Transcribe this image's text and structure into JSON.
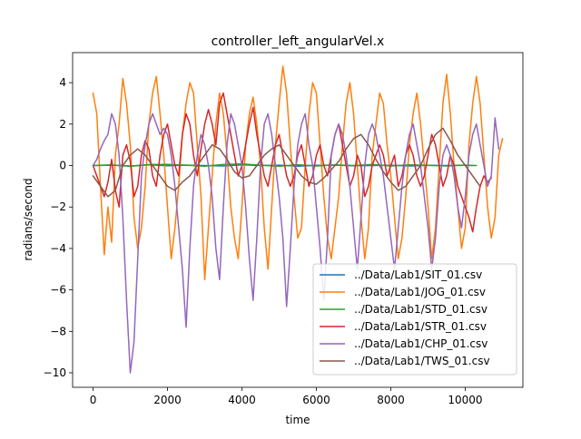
{
  "chart_data": {
    "type": "line",
    "title": "controller_left_angularVel.x",
    "xlabel": "time",
    "ylabel": "radians/second",
    "xlim": [
      -550,
      11550
    ],
    "ylim": [
      -10.7,
      5.45
    ],
    "x_ticks": [
      0,
      2000,
      4000,
      6000,
      8000,
      10000
    ],
    "y_ticks": [
      -10,
      -8,
      -6,
      -4,
      -2,
      0,
      2,
      4
    ],
    "grid": false,
    "legend_position": "lower right",
    "series": [
      {
        "name": "../Data/Lab1/SIT_01.csv",
        "color": "#1f77b4",
        "x": [
          0,
          500,
          1000,
          1500,
          2000,
          2500,
          3000,
          3500,
          4000,
          4500,
          5000,
          5500,
          6000,
          6500,
          7000,
          7500,
          8000,
          8500,
          9000,
          9500,
          10000,
          10200
        ],
        "y": [
          0.0,
          0.02,
          -0.02,
          0.03,
          -0.01,
          0.02,
          0.0,
          -0.02,
          0.03,
          0.0,
          0.02,
          -0.03,
          0.01,
          0.02,
          -0.01,
          0.0,
          0.02,
          -0.02,
          0.01,
          0.0,
          0.02,
          0.0
        ]
      },
      {
        "name": "../Data/Lab1/JOG_01.csv",
        "color": "#ff7f0e",
        "x": [
          0,
          100,
          200,
          300,
          400,
          500,
          600,
          700,
          800,
          900,
          1000,
          1100,
          1200,
          1300,
          1400,
          1500,
          1600,
          1700,
          1800,
          1900,
          2000,
          2100,
          2200,
          2300,
          2400,
          2500,
          2600,
          2700,
          2800,
          2900,
          3000,
          3100,
          3200,
          3300,
          3400,
          3500,
          3600,
          3700,
          3800,
          3900,
          4000,
          4100,
          4200,
          4300,
          4400,
          4500,
          4600,
          4700,
          4800,
          4900,
          5000,
          5100,
          5200,
          5300,
          5400,
          5500,
          5600,
          5700,
          5800,
          5900,
          6000,
          6100,
          6200,
          6300,
          6400,
          6500,
          6600,
          6700,
          6800,
          6900,
          7000,
          7100,
          7200,
          7300,
          7400,
          7500,
          7600,
          7700,
          7800,
          7900,
          8000,
          8100,
          8200,
          8300,
          8400,
          8500,
          8600,
          8700,
          8800,
          8900,
          9000,
          9100,
          9200,
          9300,
          9400,
          9500,
          9600,
          9700,
          9800,
          9900,
          10000,
          10100,
          10200,
          10300,
          10400,
          10500,
          10600,
          10700,
          10800,
          10900,
          11000
        ],
        "y": [
          3.5,
          2.5,
          -1.0,
          -4.3,
          -2.0,
          -3.7,
          0.5,
          2.0,
          4.2,
          3.0,
          1.0,
          -2.5,
          -4.0,
          -3.0,
          -1.0,
          2.0,
          3.5,
          4.3,
          2.5,
          0.5,
          -2.0,
          -4.5,
          -3.0,
          -1.0,
          1.5,
          3.0,
          4.0,
          3.5,
          1.0,
          -1.5,
          -5.5,
          -3.0,
          -0.5,
          2.0,
          3.5,
          2.5,
          0.5,
          -2.0,
          -3.5,
          -4.5,
          -2.0,
          1.0,
          2.5,
          3.3,
          2.0,
          0.0,
          -3.0,
          -5.0,
          -2.0,
          1.0,
          3.0,
          4.8,
          3.5,
          1.0,
          -1.5,
          -3.5,
          -3.0,
          0.0,
          2.5,
          4.0,
          3.5,
          1.0,
          -1.5,
          -3.5,
          -4.5,
          -3.0,
          -1.5,
          1.0,
          3.0,
          4.0,
          2.5,
          0.0,
          -2.5,
          -4.5,
          -3.0,
          0.5,
          2.0,
          3.5,
          3.0,
          1.0,
          -0.5,
          -2.5,
          -4.5,
          -3.5,
          -1.5,
          1.0,
          2.5,
          3.5,
          2.0,
          0.0,
          -2.0,
          -4.5,
          -3.0,
          0.0,
          3.0,
          4.4,
          2.5,
          0.0,
          -2.0,
          -4.0,
          -3.0,
          1.0,
          3.0,
          4.3,
          3.0,
          0.5,
          -2.0,
          -3.5,
          -2.5,
          0.5,
          1.3
        ]
      },
      {
        "name": "../Data/Lab1/STD_01.csv",
        "color": "#2ca02c",
        "x": [
          0,
          500,
          1000,
          1500,
          2000,
          2500,
          3000,
          3500,
          4000,
          4500,
          5000,
          5500,
          6000,
          6500,
          7000,
          7500,
          8000,
          8500,
          9000,
          9500,
          10000,
          10300
        ],
        "y": [
          0.0,
          0.03,
          -0.04,
          0.05,
          0.06,
          0.02,
          -0.03,
          0.05,
          0.08,
          0.02,
          -0.03,
          0.04,
          -0.02,
          0.03,
          0.0,
          0.05,
          -0.02,
          0.03,
          0.01,
          -0.02,
          0.02,
          0.0
        ]
      },
      {
        "name": "../Data/Lab1/STR_01.csv",
        "color": "#d62728",
        "x": [
          0,
          100,
          200,
          300,
          400,
          500,
          600,
          700,
          800,
          900,
          1000,
          1100,
          1200,
          1300,
          1400,
          1500,
          1600,
          1700,
          1800,
          1900,
          2000,
          2100,
          2200,
          2300,
          2400,
          2500,
          2600,
          2700,
          2800,
          2900,
          3000,
          3100,
          3200,
          3300,
          3400,
          3500,
          3600,
          3700,
          3800,
          3900,
          4000,
          4100,
          4200,
          4300,
          4400,
          4500,
          4600,
          4700,
          4800,
          4900,
          5000,
          5100,
          5200,
          5300,
          5400,
          5500,
          5600,
          5700,
          5800,
          5900,
          6000,
          6100,
          6200,
          6300,
          6400,
          6500,
          6600,
          6700,
          6800,
          6900,
          7000,
          7100,
          7200,
          7300,
          7400,
          7500,
          7600,
          7700,
          7800,
          7900,
          8000,
          8100,
          8200,
          8300,
          8400,
          8500,
          8600,
          8700,
          8800,
          8900,
          9000,
          9100,
          9200,
          9300,
          9400,
          9500,
          9600,
          9700,
          9800,
          9900,
          10000,
          10100,
          10200,
          10300,
          10400,
          10500,
          10600,
          10700
        ],
        "y": [
          0.0,
          -0.5,
          -1.0,
          -1.5,
          -0.8,
          0.3,
          -1.2,
          -2.0,
          0.5,
          1.0,
          0.2,
          -1.5,
          -1.0,
          0.5,
          1.2,
          0.8,
          -0.5,
          -1.0,
          0.5,
          1.5,
          2.0,
          1.0,
          0.0,
          -0.5,
          1.5,
          2.5,
          2.0,
          0.5,
          -0.5,
          0.8,
          2.0,
          2.7,
          2.0,
          1.0,
          3.0,
          3.5,
          2.5,
          1.5,
          0.5,
          -0.5,
          0.0,
          1.0,
          2.0,
          2.8,
          1.5,
          0.5,
          -0.5,
          -1.0,
          0.0,
          1.0,
          1.5,
          0.5,
          -0.5,
          -1.0,
          -0.5,
          0.5,
          1.0,
          0.0,
          -1.0,
          -0.5,
          0.5,
          1.0,
          0.0,
          -0.5,
          0.5,
          1.5,
          2.0,
          1.0,
          0.0,
          -1.0,
          -0.5,
          0.5,
          0.0,
          -1.5,
          -1.0,
          0.0,
          0.5,
          1.0,
          0.5,
          -0.5,
          0.0,
          0.5,
          -1.0,
          -0.5,
          0.5,
          1.0,
          0.5,
          -0.5,
          -1.0,
          -0.5,
          0.5,
          1.5,
          1.0,
          0.0,
          -1.0,
          -0.5,
          0.5,
          0.0,
          -1.0,
          -1.5,
          -2.0,
          -2.5,
          -3.2,
          -2.0,
          -1.0,
          -0.5,
          -0.8,
          -0.6
        ]
      },
      {
        "name": "../Data/Lab1/CHP_01.csv",
        "color": "#9467bd",
        "x": [
          0,
          100,
          200,
          300,
          400,
          500,
          600,
          700,
          800,
          900,
          1000,
          1100,
          1200,
          1300,
          1400,
          1500,
          1600,
          1700,
          1800,
          1900,
          2000,
          2100,
          2200,
          2300,
          2400,
          2500,
          2600,
          2700,
          2800,
          2900,
          3000,
          3100,
          3200,
          3300,
          3400,
          3500,
          3600,
          3700,
          3800,
          3900,
          4000,
          4100,
          4200,
          4300,
          4400,
          4500,
          4600,
          4700,
          4800,
          4900,
          5000,
          5100,
          5200,
          5300,
          5400,
          5500,
          5600,
          5700,
          5800,
          5900,
          6000,
          6100,
          6200,
          6300,
          6400,
          6500,
          6600,
          6700,
          6800,
          6900,
          7000,
          7100,
          7200,
          7300,
          7400,
          7500,
          7600,
          7700,
          7800,
          7900,
          8000,
          8100,
          8200,
          8300,
          8400,
          8500,
          8600,
          8700,
          8800,
          8900,
          9000,
          9100,
          9200,
          9300,
          9400,
          9500,
          9600,
          9700,
          9800,
          9900,
          10000,
          10100,
          10200,
          10300,
          10400,
          10500,
          10600,
          10700,
          10800,
          10900
        ],
        "y": [
          0.0,
          0.3,
          0.8,
          1.2,
          1.5,
          2.5,
          2.0,
          0.5,
          -2.5,
          -6.5,
          -10.0,
          -8.5,
          -4.5,
          -0.5,
          1.0,
          2.0,
          2.5,
          2.0,
          1.5,
          1.8,
          1.5,
          0.5,
          -1.0,
          -3.0,
          -5.0,
          -7.8,
          -4.0,
          -1.0,
          0.5,
          1.5,
          1.0,
          0.0,
          -1.5,
          -4.0,
          -5.5,
          -2.0,
          1.0,
          2.5,
          2.0,
          1.0,
          0.0,
          -2.0,
          -4.5,
          -6.5,
          -3.5,
          0.0,
          2.0,
          2.5,
          1.5,
          0.0,
          -1.5,
          -3.5,
          -6.8,
          -4.0,
          -1.0,
          1.0,
          2.0,
          2.5,
          1.0,
          0.0,
          -2.0,
          -4.0,
          -6.5,
          -3.5,
          0.5,
          1.5,
          2.0,
          1.5,
          0.5,
          -1.0,
          -3.0,
          -5.0,
          -2.5,
          0.0,
          1.5,
          2.0,
          1.5,
          0.5,
          -0.5,
          -2.0,
          -3.5,
          -5.0,
          -3.0,
          -1.0,
          0.5,
          1.5,
          2.0,
          1.0,
          0.0,
          -1.5,
          -3.0,
          -5.0,
          -3.5,
          -1.0,
          0.5,
          1.0,
          0.5,
          -0.5,
          -2.0,
          -3.0,
          -1.5,
          0.5,
          1.5,
          2.0,
          1.0,
          0.0,
          -1.0,
          -0.5,
          2.3,
          0.8
        ]
      },
      {
        "name": "../Data/Lab1/TWS_01.csv",
        "color": "#8c564b",
        "x": [
          0,
          200,
          400,
          600,
          800,
          1000,
          1200,
          1400,
          1600,
          1800,
          2000,
          2200,
          2400,
          2600,
          2800,
          3000,
          3200,
          3400,
          3600,
          3800,
          4000,
          4200,
          4400,
          4600,
          4800,
          5000,
          5200,
          5400,
          5600,
          5800,
          6000,
          6200,
          6400,
          6600,
          6800,
          7000,
          7200,
          7400,
          7600,
          7800,
          8000,
          8200,
          8400,
          8600,
          8800,
          9000,
          9200,
          9400,
          9600,
          9800,
          10000,
          10200,
          10400
        ],
        "y": [
          -0.5,
          -1.0,
          -1.5,
          -1.2,
          0.0,
          0.5,
          0.8,
          0.5,
          0.0,
          -0.5,
          -1.0,
          -1.2,
          -0.8,
          -0.5,
          0.0,
          0.5,
          1.0,
          0.8,
          0.3,
          -0.3,
          -0.6,
          -0.5,
          0.0,
          0.5,
          0.8,
          1.0,
          0.5,
          0.0,
          -0.5,
          -0.8,
          -0.9,
          -0.6,
          -0.2,
          0.2,
          0.8,
          1.3,
          1.5,
          1.0,
          0.3,
          -0.3,
          -0.8,
          -1.2,
          -1.0,
          -0.5,
          0.0,
          0.8,
          1.5,
          1.8,
          1.2,
          0.5,
          0.0,
          -0.5,
          -1.0
        ]
      }
    ]
  }
}
